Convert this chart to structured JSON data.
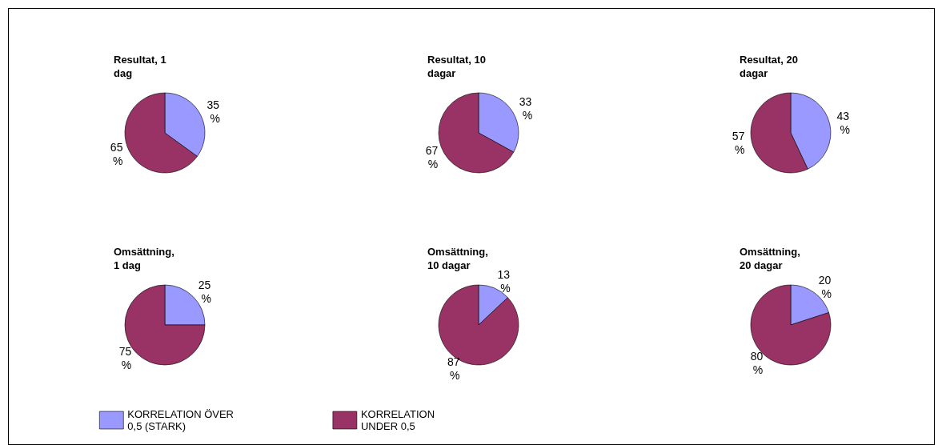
{
  "chart_data": [
    {
      "type": "pie",
      "title": "Resultat, 1 dag",
      "categories": [
        "KORRELATION ÖVER 0,5 (STARK)",
        "KORRELATION UNDER 0,5"
      ],
      "values": [
        35,
        65
      ],
      "colors": [
        "#9999ff",
        "#993366"
      ],
      "value_labels": [
        "35 %",
        "65 %"
      ],
      "legend": "bottom"
    },
    {
      "type": "pie",
      "title": "Resultat, 10 dagar",
      "categories": [
        null,
        null
      ],
      "values": [
        33,
        67
      ],
      "colors": [
        "#9999ff",
        "#993366"
      ],
      "value_labels": [
        "33 %",
        "67 %"
      ]
    },
    {
      "type": "pie",
      "title": "Resultat, 20 dagar",
      "categories": [
        null,
        null
      ],
      "values": [
        43,
        57
      ],
      "colors": [
        "#9999ff",
        "#993366"
      ],
      "value_labels": [
        "43 %",
        "57 %"
      ]
    },
    {
      "type": "pie",
      "title": "Omsättning, 1 dag",
      "categories": [
        null,
        null
      ],
      "values": [
        25,
        75
      ],
      "colors": [
        "#9999ff",
        "#993366"
      ],
      "value_labels": [
        "25 %",
        "75 %"
      ]
    },
    {
      "type": "pie",
      "title": "Omsättning, 10 dagar",
      "categories": [
        null,
        null
      ],
      "values": [
        13,
        87
      ],
      "colors": [
        "#9999ff",
        "#993366"
      ],
      "value_labels": [
        "13 %",
        "87 %"
      ]
    },
    {
      "type": "pie",
      "title": "Omsättning, 20 dagar",
      "categories": [
        null,
        null
      ],
      "values": [
        20,
        80
      ],
      "colors": [
        "#9999ff",
        "#993366"
      ],
      "value_labels": [
        "20 %",
        "80 %"
      ]
    }
  ]
}
